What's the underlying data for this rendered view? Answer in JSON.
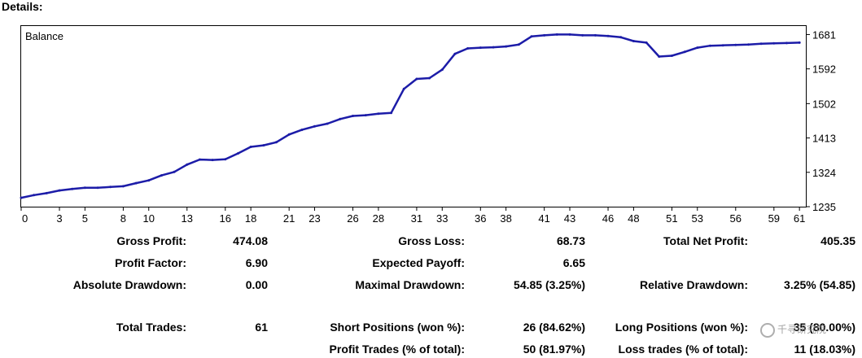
{
  "section_title": "Details:",
  "chart_data": {
    "type": "line",
    "title": "Balance",
    "series": [
      {
        "color": "#1c1ca8",
        "x": [
          0,
          1,
          2,
          3,
          4,
          5,
          6,
          7,
          8,
          9,
          10,
          11,
          12,
          13,
          14,
          15,
          16,
          17,
          18,
          19,
          20,
          21,
          22,
          23,
          24,
          25,
          26,
          27,
          28,
          29,
          30,
          31,
          32,
          33,
          34,
          35,
          36,
          37,
          38,
          39,
          40,
          41,
          42,
          43,
          44,
          45,
          46,
          47,
          48,
          49,
          50,
          51,
          52,
          53,
          54,
          55,
          56,
          57,
          58,
          59,
          60,
          61
        ],
        "values": [
          1258,
          1265,
          1270,
          1277,
          1281,
          1284,
          1284,
          1286,
          1288,
          1296,
          1303,
          1316,
          1325,
          1344,
          1357,
          1356,
          1358,
          1373,
          1390,
          1394,
          1402,
          1422,
          1434,
          1443,
          1450,
          1462,
          1470,
          1472,
          1476,
          1478,
          1540,
          1566,
          1568,
          1590,
          1631,
          1645,
          1647,
          1648,
          1650,
          1655,
          1676,
          1679,
          1681,
          1681,
          1679,
          1679,
          1677,
          1674,
          1664,
          1660,
          1624,
          1626,
          1636,
          1647,
          1652,
          1653,
          1654,
          1655,
          1657,
          1658,
          1659,
          1660
        ]
      }
    ],
    "x_ticks": [
      "0",
      "3",
      "5",
      "8",
      "10",
      "13",
      "16",
      "18",
      "21",
      "23",
      "26",
      "28",
      "31",
      "33",
      "36",
      "38",
      "41",
      "43",
      "46",
      "48",
      "51",
      "53",
      "56",
      "59",
      "61"
    ],
    "y_ticks": [
      "1681",
      "1592",
      "1502",
      "1413",
      "1324",
      "1235"
    ],
    "ylim": [
      1235,
      1703
    ],
    "xlim": [
      0,
      61.5
    ],
    "grid": false
  },
  "stats": {
    "gross_profit_label": "Gross Profit:",
    "gross_profit": "474.08",
    "gross_loss_label": "Gross Loss:",
    "gross_loss": "68.73",
    "total_net_profit_label": "Total Net Profit:",
    "total_net_profit": "405.35",
    "profit_factor_label": "Profit Factor:",
    "profit_factor": "6.90",
    "expected_payoff_label": "Expected Payoff:",
    "expected_payoff": "6.65",
    "absolute_drawdown_label": "Absolute Drawdown:",
    "absolute_drawdown": "0.00",
    "maximal_drawdown_label": "Maximal Drawdown:",
    "maximal_drawdown": "54.85 (3.25%)",
    "relative_drawdown_label": "Relative Drawdown:",
    "relative_drawdown": "3.25% (54.85)",
    "total_trades_label": "Total Trades:",
    "total_trades": "61",
    "short_positions_label": "Short Positions (won %):",
    "short_positions": "26 (84.62%)",
    "long_positions_label": "Long Positions (won %):",
    "long_positions": "35 (80.00%)",
    "profit_trades_label": "Profit Trades (% of total):",
    "profit_trades": "50 (81.97%)",
    "loss_trades_label": "Loss trades (% of total):",
    "loss_trades": "11 (18.03%)"
  },
  "watermark": "千寻研究院"
}
